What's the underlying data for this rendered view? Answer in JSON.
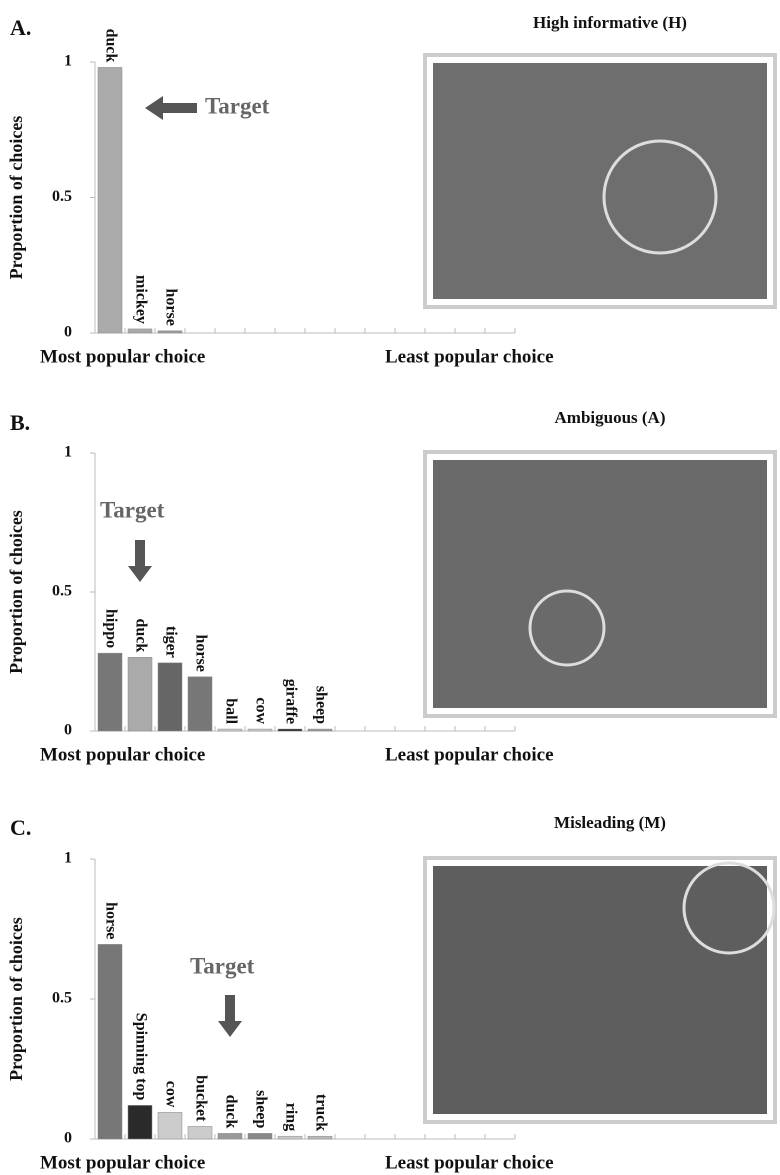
{
  "chart_data": [
    {
      "type": "bar",
      "panel": "A.",
      "title": "High informative (H)",
      "ylabel": "Proportion of choices",
      "xlabel_left": "Most popular choice",
      "xlabel_right": "Least popular choice",
      "annotation": "Target",
      "categories": [
        "duck",
        "mickey",
        "horse"
      ],
      "values": [
        0.98,
        0.015,
        0.008
      ],
      "colors": [
        "#aaaaaa",
        "#aaaaaa",
        "#999999"
      ],
      "ylim": [
        0,
        1
      ],
      "yticks": [
        0,
        0.5,
        1
      ]
    },
    {
      "type": "bar",
      "panel": "B.",
      "title": "Ambiguous (A)",
      "ylabel": "Proportion of choices",
      "xlabel_left": "Most popular choice",
      "xlabel_right": "Least popular choice",
      "annotation": "Target",
      "categories": [
        "hippo",
        "duck",
        "tiger",
        "horse",
        "ball",
        "cow",
        "giraffe",
        "sheep"
      ],
      "values": [
        0.28,
        0.265,
        0.245,
        0.195,
        0.007,
        0.007,
        0.007,
        0.007
      ],
      "colors": [
        "#777777",
        "#aaaaaa",
        "#666666",
        "#777777",
        "#cccccc",
        "#cccccc",
        "#222222",
        "#999999"
      ],
      "ylim": [
        0,
        1
      ],
      "yticks": [
        0,
        0.5,
        1
      ]
    },
    {
      "type": "bar",
      "panel": "C.",
      "title": "Misleading (M)",
      "ylabel": "Proportion of choices",
      "xlabel_left": "Most popular choice",
      "xlabel_right": "Least popular choice",
      "annotation": "Target",
      "categories": [
        "horse",
        "Spinning top",
        "cow",
        "bucket",
        "duck",
        "sheep",
        "ring",
        "truck"
      ],
      "values": [
        0.695,
        0.12,
        0.095,
        0.045,
        0.02,
        0.02,
        0.01,
        0.01
      ],
      "colors": [
        "#777777",
        "#2a2a2a",
        "#cccccc",
        "#cccccc",
        "#999999",
        "#888888",
        "#cccccc",
        "#bbbbbb"
      ],
      "ylim": [
        0,
        1
      ],
      "yticks": [
        0,
        0.5,
        1
      ]
    }
  ]
}
